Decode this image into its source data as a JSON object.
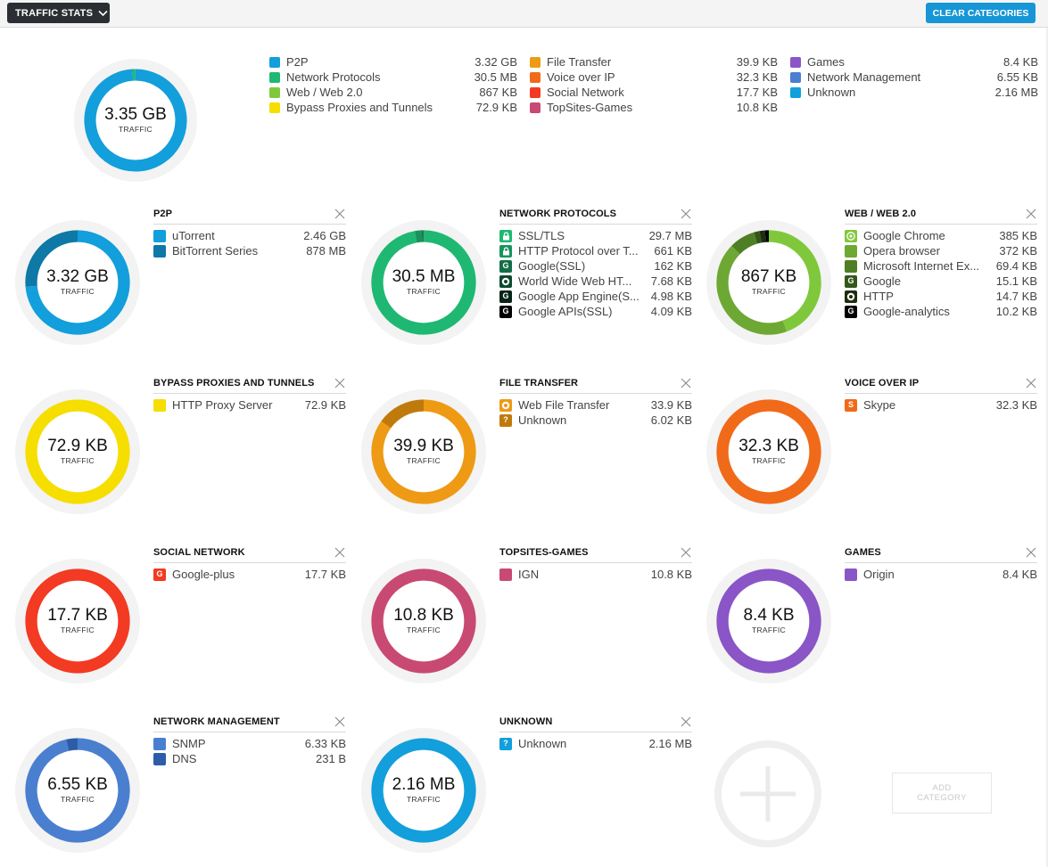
{
  "toolbar": {
    "stats_dropdown_label": "TRAFFIC STATS",
    "clear_label": "CLEAR CATEGORIES",
    "accent_color": "#1796d6"
  },
  "summary": {
    "total": "3.35 GB",
    "total_label": "TRAFFIC",
    "categories": [
      {
        "name": "P2P",
        "value": "3.32 GB",
        "bytes": 3320000000,
        "color": "#129fdb"
      },
      {
        "name": "Network Protocols",
        "value": "30.5 MB",
        "bytes": 30500000,
        "color": "#1fb873"
      },
      {
        "name": "Web / Web 2.0",
        "value": "867 KB",
        "bytes": 867000,
        "color": "#80c83b"
      },
      {
        "name": "Bypass Proxies and Tunnels",
        "value": "72.9 KB",
        "bytes": 72900,
        "color": "#f6de00"
      },
      {
        "name": "File Transfer",
        "value": "39.9 KB",
        "bytes": 39900,
        "color": "#ee9a14"
      },
      {
        "name": "Voice over IP",
        "value": "32.3 KB",
        "bytes": 32300,
        "color": "#f06a1a"
      },
      {
        "name": "Social Network",
        "value": "17.7 KB",
        "bytes": 17700,
        "color": "#f33a22"
      },
      {
        "name": "TopSites-Games",
        "value": "10.8 KB",
        "bytes": 10800,
        "color": "#c84a73"
      },
      {
        "name": "Games",
        "value": "8.4 KB",
        "bytes": 8400,
        "color": "#8a55c7"
      },
      {
        "name": "Network Management",
        "value": "6.55 KB",
        "bytes": 6550,
        "color": "#4a7fd0"
      },
      {
        "name": "Unknown",
        "value": "2.16 MB",
        "bytes": 2160000,
        "color": "#129fdb"
      }
    ]
  },
  "panels": [
    {
      "title": "P2P",
      "total": "3.32 GB",
      "total_label": "TRAFFIC",
      "items": [
        {
          "name": "uTorrent",
          "value": "2.46 GB",
          "bytes": 2460000000,
          "color": "#129fdb",
          "icon": "square"
        },
        {
          "name": "BitTorrent Series",
          "value": "878 MB",
          "bytes": 878000000,
          "color": "#0e78a6",
          "icon": "square"
        }
      ]
    },
    {
      "title": "NETWORK PROTOCOLS",
      "total": "30.5 MB",
      "total_label": "TRAFFIC",
      "items": [
        {
          "name": "SSL/TLS",
          "value": "29.7 MB",
          "bytes": 29700000,
          "color": "#1fb873",
          "icon": "lock"
        },
        {
          "name": "HTTP Protocol over T...",
          "value": "661 KB",
          "bytes": 661000,
          "color": "#18935b",
          "icon": "lock"
        },
        {
          "name": "Google(SSL)",
          "value": "162 KB",
          "bytes": 162000,
          "color": "#126e45",
          "icon": "google"
        },
        {
          "name": "World Wide Web HT...",
          "value": "7.68 KB",
          "bytes": 7680,
          "color": "#0c4a2e",
          "icon": "globe"
        },
        {
          "name": "Google App Engine(S...",
          "value": "4.98 KB",
          "bytes": 4980,
          "color": "#062517",
          "icon": "google"
        },
        {
          "name": "Google APIs(SSL)",
          "value": "4.09 KB",
          "bytes": 4090,
          "color": "#000000",
          "icon": "google"
        }
      ]
    },
    {
      "title": "WEB / WEB 2.0",
      "total": "867 KB",
      "total_label": "TRAFFIC",
      "items": [
        {
          "name": "Google Chrome",
          "value": "385 KB",
          "bytes": 385000,
          "color": "#80c83b",
          "icon": "chrome"
        },
        {
          "name": "Opera browser",
          "value": "372 KB",
          "bytes": 372000,
          "color": "#6ea834",
          "icon": "square"
        },
        {
          "name": "Microsoft Internet Ex...",
          "value": "69.4 KB",
          "bytes": 69400,
          "color": "#4f7f25",
          "icon": "square"
        },
        {
          "name": "Google",
          "value": "15.1 KB",
          "bytes": 15100,
          "color": "#35561a",
          "icon": "google"
        },
        {
          "name": "HTTP",
          "value": "14.7 KB",
          "bytes": 14700,
          "color": "#1c2e0d",
          "icon": "globe"
        },
        {
          "name": "Google-analytics",
          "value": "10.2 KB",
          "bytes": 10200,
          "color": "#000000",
          "icon": "google"
        }
      ]
    },
    {
      "title": "BYPASS PROXIES AND TUNNELS",
      "total": "72.9 KB",
      "total_label": "TRAFFIC",
      "items": [
        {
          "name": "HTTP Proxy Server",
          "value": "72.9 KB",
          "bytes": 72900,
          "color": "#f6de00",
          "icon": "square"
        }
      ]
    },
    {
      "title": "FILE TRANSFER",
      "total": "39.9 KB",
      "total_label": "TRAFFIC",
      "items": [
        {
          "name": "Web File Transfer",
          "value": "33.9 KB",
          "bytes": 33900,
          "color": "#ee9a14",
          "icon": "globe"
        },
        {
          "name": "Unknown",
          "value": "6.02 KB",
          "bytes": 6020,
          "color": "#c07a0c",
          "icon": "question"
        }
      ]
    },
    {
      "title": "VOICE OVER IP",
      "total": "32.3 KB",
      "total_label": "TRAFFIC",
      "items": [
        {
          "name": "Skype",
          "value": "32.3 KB",
          "bytes": 32300,
          "color": "#f06a1a",
          "icon": "skype"
        }
      ]
    },
    {
      "title": "SOCIAL NETWORK",
      "total": "17.7 KB",
      "total_label": "TRAFFIC",
      "items": [
        {
          "name": "Google-plus",
          "value": "17.7 KB",
          "bytes": 17700,
          "color": "#f33a22",
          "icon": "google"
        }
      ]
    },
    {
      "title": "TOPSITES-GAMES",
      "total": "10.8 KB",
      "total_label": "TRAFFIC",
      "items": [
        {
          "name": "IGN",
          "value": "10.8 KB",
          "bytes": 10800,
          "color": "#c84a73",
          "icon": "square"
        }
      ]
    },
    {
      "title": "GAMES",
      "total": "8.4 KB",
      "total_label": "TRAFFIC",
      "items": [
        {
          "name": "Origin",
          "value": "8.4 KB",
          "bytes": 8400,
          "color": "#8a55c7",
          "icon": "square"
        }
      ]
    },
    {
      "title": "NETWORK MANAGEMENT",
      "total": "6.55 KB",
      "total_label": "TRAFFIC",
      "items": [
        {
          "name": "SNMP",
          "value": "6.33 KB",
          "bytes": 6330,
          "color": "#4a7fd0",
          "icon": "square"
        },
        {
          "name": "DNS",
          "value": "231 B",
          "bytes": 231,
          "color": "#2d5da8",
          "icon": "square"
        }
      ]
    },
    {
      "title": "UNKNOWN",
      "total": "2.16 MB",
      "total_label": "TRAFFIC",
      "items": [
        {
          "name": "Unknown",
          "value": "2.16 MB",
          "bytes": 2160000,
          "color": "#129fdb",
          "icon": "question"
        }
      ]
    }
  ],
  "add_category": {
    "label": "ADD CATEGORY",
    "icon": "plus-icon"
  }
}
